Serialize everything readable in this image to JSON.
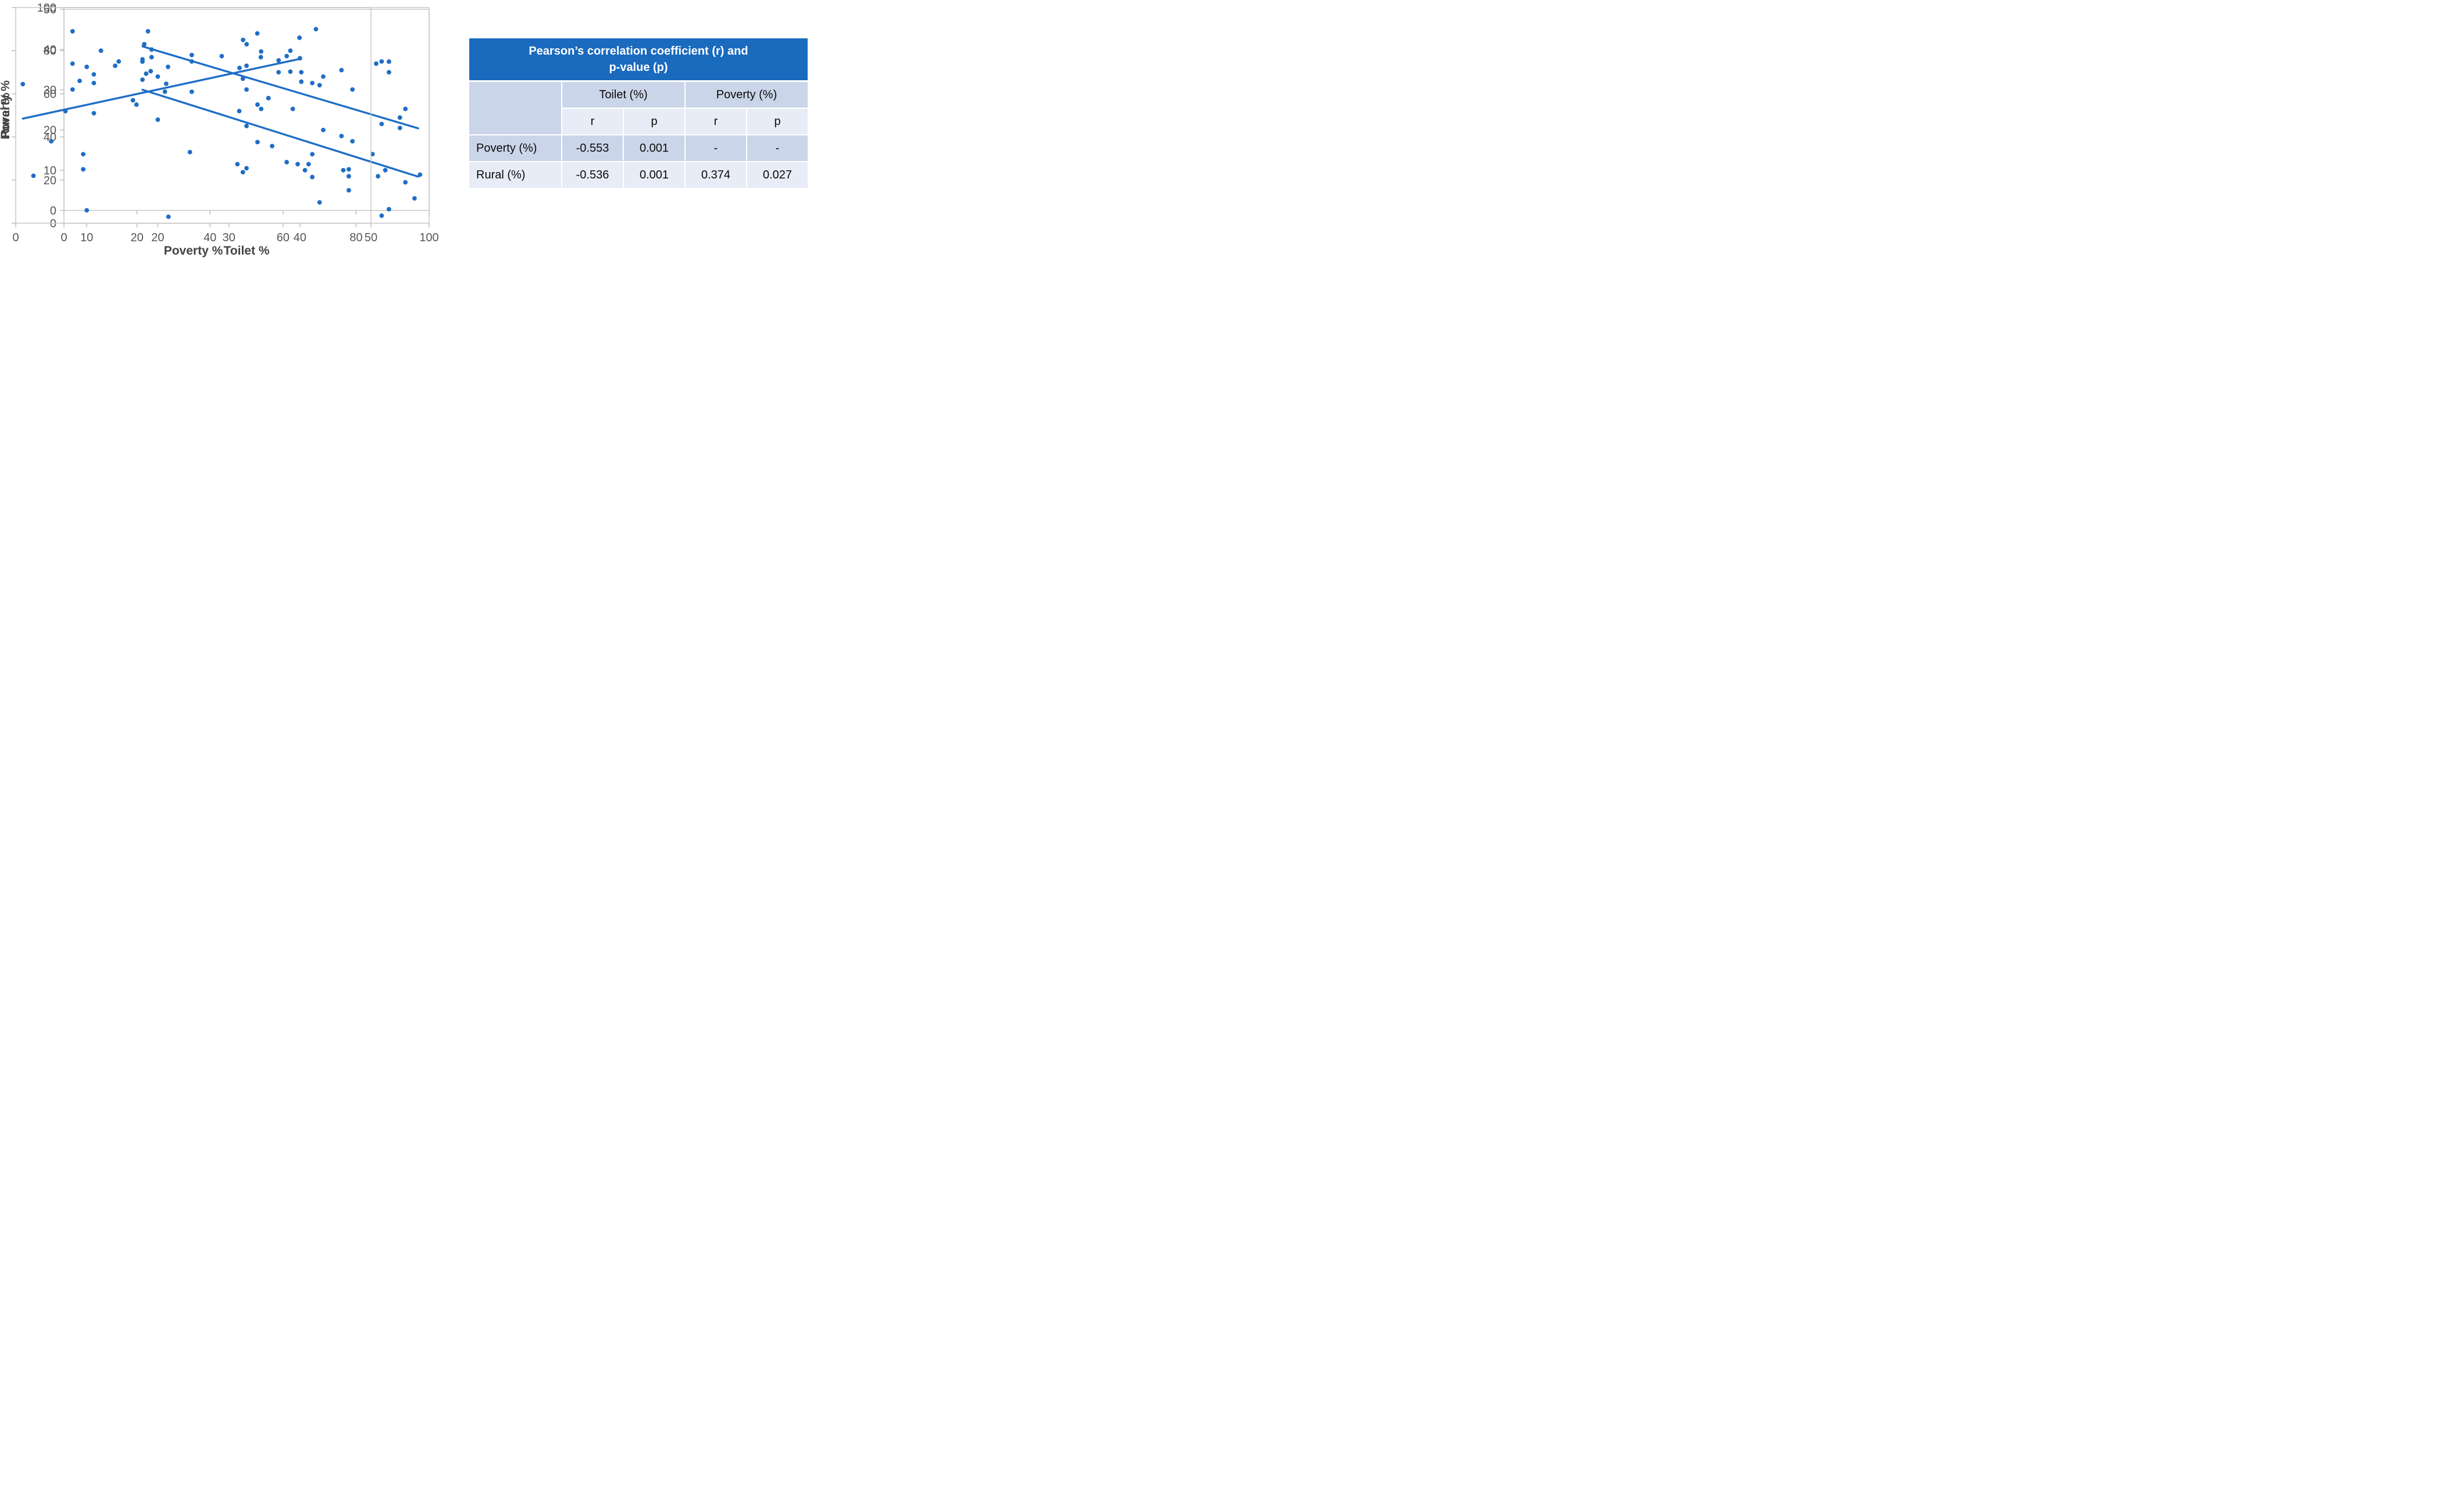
{
  "colors": {
    "chart_blue": "#1F6EC6",
    "table_header_bg": "#1A6ABE",
    "table_header_text": "#FFFFFF",
    "band_dark": "#CBD5E9",
    "band_light": "#E8ECF6",
    "axis_line": "#C8C8C8",
    "tick_mark": "#BFBFBF",
    "tick_text": "#565656",
    "axis_title_text": "#434343",
    "table_text": "#0A0A0A"
  },
  "table": {
    "title_line1": "Pearson’s correlation coefficient (r) and",
    "title_line2": "p-value (p)",
    "col_groups": [
      "Toilet (%)",
      "Poverty (%)"
    ],
    "sub_headers": [
      "r",
      "p",
      "r",
      "p"
    ],
    "rows": [
      {
        "label": "Poverty (%)",
        "values": [
          "-0.553",
          "0.001",
          "-",
          "-"
        ]
      },
      {
        "label": "Rural (%)",
        "values": [
          "-0.536",
          "0.001",
          "0.374",
          "0.027"
        ]
      }
    ]
  },
  "chart_data": [
    {
      "id": "poverty-vs-toilet",
      "type": "scatter",
      "title": "",
      "xlabel": "",
      "ylabel": "Poverty %",
      "xlim": [
        0,
        100
      ],
      "ylim": [
        0,
        50
      ],
      "xticks": [
        0,
        20,
        40,
        60,
        80,
        100
      ],
      "yticks": [
        0,
        10,
        20,
        30,
        40,
        50
      ],
      "x_tick_labels_visible": false,
      "y_tick_labels_visible": true,
      "grid": false,
      "legend": "none",
      "points": [
        [
          21.5,
          37
        ],
        [
          22.5,
          34
        ],
        [
          21.5,
          32.5
        ],
        [
          24,
          40
        ],
        [
          28,
          31.5
        ],
        [
          35,
          29.5
        ],
        [
          34.5,
          14.5
        ],
        [
          47.5,
          11.5
        ],
        [
          49,
          9.5
        ],
        [
          50,
          10.5
        ],
        [
          50,
          21
        ],
        [
          53,
          17
        ],
        [
          54,
          39.5
        ],
        [
          57,
          16
        ],
        [
          61,
          12
        ],
        [
          62,
          34.5
        ],
        [
          64,
          11.5
        ],
        [
          65,
          32
        ],
        [
          66,
          10
        ],
        [
          67,
          11.5
        ],
        [
          68,
          8.3
        ],
        [
          70,
          2
        ],
        [
          71,
          20
        ],
        [
          76,
          18.5
        ],
        [
          76.5,
          10
        ],
        [
          78,
          8.5
        ],
        [
          78,
          5
        ],
        [
          84.5,
          14
        ],
        [
          86,
          8.5
        ],
        [
          87,
          21.5
        ],
        [
          88,
          10
        ],
        [
          89,
          37
        ],
        [
          92,
          20.5
        ],
        [
          93.5,
          7
        ],
        [
          96,
          3
        ]
      ],
      "trendline": [
        [
          21.5,
          30
        ],
        [
          97,
          8.4
        ]
      ]
    },
    {
      "id": "rural-vs-toilet",
      "type": "scatter",
      "title": "",
      "xlabel": "Toilet %",
      "ylabel": "Rural %",
      "xlim": [
        0,
        100
      ],
      "ylim": [
        0,
        100
      ],
      "xticks": [
        0,
        20,
        40,
        60,
        80,
        100
      ],
      "yticks": [
        0,
        20,
        40,
        60,
        80,
        100
      ],
      "x_tick_labels_visible": true,
      "y_tick_labels_visible": true,
      "grid": false,
      "legend": "none",
      "points": [
        [
          23,
          89
        ],
        [
          22,
          83
        ],
        [
          21.5,
          76
        ],
        [
          24,
          77
        ],
        [
          28.5,
          72.5
        ],
        [
          35,
          78
        ],
        [
          35,
          75
        ],
        [
          48,
          52
        ],
        [
          49,
          67
        ],
        [
          50,
          73
        ],
        [
          50,
          62
        ],
        [
          53,
          55
        ],
        [
          54,
          53
        ],
        [
          56,
          58
        ],
        [
          61,
          77.5
        ],
        [
          62,
          80
        ],
        [
          64.5,
          86
        ],
        [
          65,
          70
        ],
        [
          68,
          65
        ],
        [
          69,
          90
        ],
        [
          70,
          64
        ],
        [
          71,
          68
        ],
        [
          68,
          32
        ],
        [
          76,
          71
        ],
        [
          78,
          25
        ],
        [
          79,
          62
        ],
        [
          79,
          38
        ],
        [
          85.5,
          74
        ],
        [
          87,
          75
        ],
        [
          87,
          3.5
        ],
        [
          89,
          70
        ],
        [
          89,
          6.5
        ],
        [
          92,
          49
        ],
        [
          93.5,
          53
        ],
        [
          97.5,
          22.5
        ]
      ],
      "trendline": [
        [
          21.5,
          82
        ],
        [
          97,
          44
        ]
      ]
    },
    {
      "id": "rural-vs-poverty",
      "type": "scatter",
      "title": "",
      "xlabel": "Poverty %",
      "ylabel": "",
      "xlim": [
        0,
        50
      ],
      "ylim": [
        0,
        100
      ],
      "xticks": [
        0,
        10,
        20,
        30,
        40,
        50
      ],
      "yticks": [
        0,
        20,
        40,
        60,
        80,
        100
      ],
      "x_tick_labels_visible": true,
      "y_tick_labels_visible": false,
      "grid": false,
      "legend": "none",
      "points": [
        [
          1,
          64.5
        ],
        [
          2.5,
          22
        ],
        [
          5,
          38
        ],
        [
          7,
          52
        ],
        [
          8,
          89
        ],
        [
          8,
          74
        ],
        [
          8,
          62
        ],
        [
          9,
          66
        ],
        [
          9.5,
          32
        ],
        [
          9.5,
          25
        ],
        [
          10,
          72.5
        ],
        [
          10,
          6
        ],
        [
          11,
          69
        ],
        [
          11,
          65
        ],
        [
          11,
          51
        ],
        [
          12,
          80
        ],
        [
          14,
          73
        ],
        [
          14.5,
          75
        ],
        [
          16.5,
          57
        ],
        [
          17,
          55
        ],
        [
          19,
          70.5
        ],
        [
          20,
          68
        ],
        [
          20,
          48
        ],
        [
          21,
          61
        ],
        [
          21.5,
          3
        ],
        [
          29,
          77.5
        ],
        [
          31.5,
          72
        ],
        [
          32,
          85
        ],
        [
          32.5,
          83
        ],
        [
          34,
          88
        ],
        [
          34.5,
          77
        ],
        [
          37,
          75.5
        ],
        [
          37,
          70
        ],
        [
          39,
          53
        ],
        [
          40,
          76.5
        ]
      ],
      "trendline": [
        [
          1,
          48.5
        ],
        [
          39.7,
          76
        ]
      ]
    }
  ]
}
